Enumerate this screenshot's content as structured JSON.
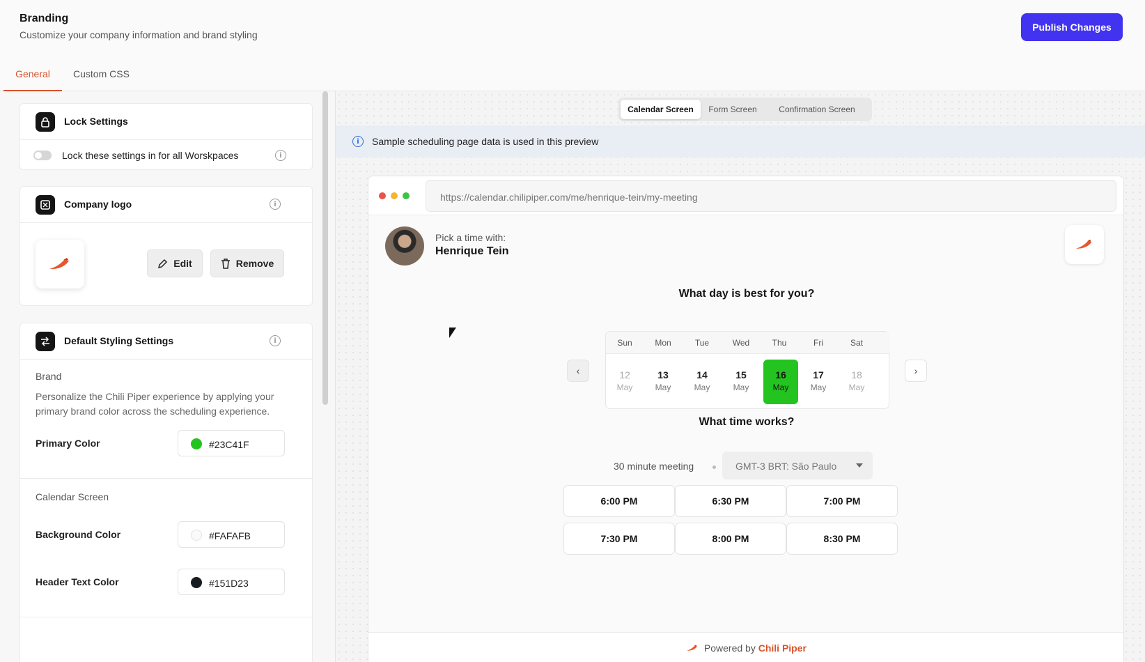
{
  "header": {
    "title": "Branding",
    "subtitle": "Customize your company information and brand styling",
    "publish_label": "Publish Changes"
  },
  "tabs": [
    {
      "label": "General",
      "active": true
    },
    {
      "label": "Custom CSS",
      "active": false
    }
  ],
  "lock_settings": {
    "title": "Lock Settings",
    "toggle_label": "Lock these settings in for all Worskpaces",
    "enabled": false
  },
  "company_logo": {
    "title": "Company logo",
    "edit_label": "Edit",
    "remove_label": "Remove"
  },
  "styling": {
    "title": "Default Styling Settings",
    "brand_label": "Brand",
    "brand_desc": "Personalize the Chili Piper experience by applying your primary brand color across the scheduling experience.",
    "primary_label": "Primary Color",
    "primary_value": "#23C41F",
    "calendar_label": "Calendar Screen",
    "bg_label": "Background Color",
    "bg_value": "#FAFAFB",
    "header_text_label": "Header Text Color",
    "header_text_value": "#151D23"
  },
  "preview": {
    "segments": [
      {
        "label": "Calendar Screen",
        "active": true
      },
      {
        "label": "Form Screen",
        "active": false
      },
      {
        "label": "Confirmation Screen",
        "active": false
      }
    ],
    "banner": "Sample scheduling page data is used in this preview",
    "url": "https://calendar.chilipiper.com/me/henrique-tein/my-meeting",
    "pick_label": "Pick a time with:",
    "host_name": "Henrique Tein",
    "day_question": "What day is best for you?",
    "weekdays": [
      "Sun",
      "Mon",
      "Tue",
      "Wed",
      "Thu",
      "Fri",
      "Sat"
    ],
    "days": [
      {
        "num": "12",
        "month": "May",
        "state": "muted"
      },
      {
        "num": "13",
        "month": "May",
        "state": "normal"
      },
      {
        "num": "14",
        "month": "May",
        "state": "normal"
      },
      {
        "num": "15",
        "month": "May",
        "state": "normal"
      },
      {
        "num": "16",
        "month": "May",
        "state": "selected"
      },
      {
        "num": "17",
        "month": "May",
        "state": "normal"
      },
      {
        "num": "18",
        "month": "May",
        "state": "muted"
      }
    ],
    "time_question": "What time works?",
    "meeting_length": "30 minute meeting",
    "timezone": "GMT-3  BRT: São Paulo",
    "slots": [
      "6:00 PM",
      "6:30 PM",
      "7:00 PM",
      "7:30 PM",
      "8:00 PM",
      "8:30 PM"
    ],
    "powered_by": "Powered by",
    "powered_brand": "Chili Piper"
  },
  "colors": {
    "accent": "#4233F0",
    "tab_active": "#D9532B",
    "primary": "#23C41F",
    "background": "#FAFAFB",
    "header_text": "#151D23"
  },
  "icons": [
    "lock-icon",
    "image-icon",
    "sliders-icon",
    "info-icon",
    "pencil-icon",
    "trash-icon",
    "chevron-left-icon",
    "chevron-right-icon",
    "chevron-down-icon",
    "chili-logo-icon"
  ]
}
